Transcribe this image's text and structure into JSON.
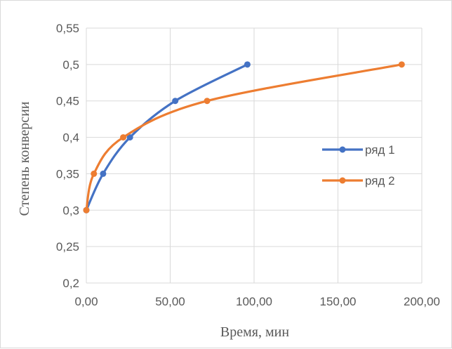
{
  "chart_data": {
    "type": "line",
    "xlabel": "Время, мин",
    "ylabel": "Степень конверсии",
    "xlim": [
      0,
      200
    ],
    "ylim": [
      0.2,
      0.55
    ],
    "x_ticks": [
      "0,00",
      "50,00",
      "100,00",
      "150,00",
      "200,00"
    ],
    "y_ticks": [
      "0,2",
      "0,25",
      "0,3",
      "0,35",
      "0,4",
      "0,45",
      "0,5",
      "0,55"
    ],
    "grid": true,
    "legend_position": "right",
    "series": [
      {
        "name": "ряд 1",
        "color": "#4472C4",
        "x": [
          0,
          10,
          26,
          53,
          96
        ],
        "y": [
          0.3,
          0.35,
          0.4,
          0.45,
          0.5
        ]
      },
      {
        "name": "ряд 2",
        "color": "#ED7D31",
        "x": [
          0,
          4.5,
          22,
          72,
          188
        ],
        "y": [
          0.3,
          0.35,
          0.4,
          0.45,
          0.5
        ]
      }
    ]
  }
}
